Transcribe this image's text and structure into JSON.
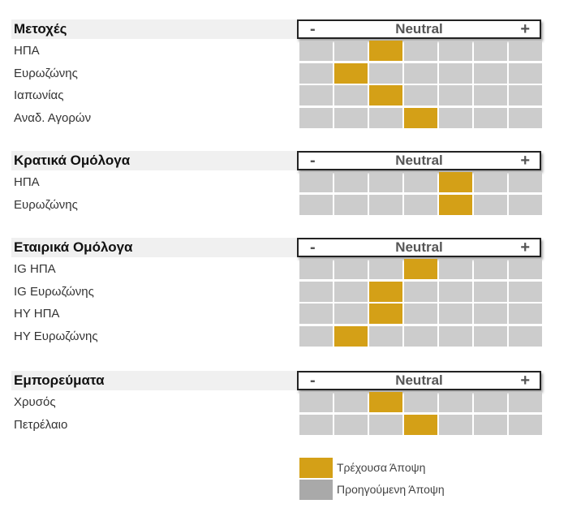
{
  "chart_data": {
    "type": "table",
    "scale": {
      "minus": "-",
      "neutral": "Neutral",
      "plus": "+"
    },
    "positions": 7,
    "colors": {
      "current": "#d4a017",
      "empty": "#cccccc",
      "previous": "#a9a9a9"
    },
    "sections": [
      {
        "title": "Μετοχές",
        "rows": [
          {
            "label": "ΗΠΑ",
            "current": 3
          },
          {
            "label": "Ευρωζώνης",
            "current": 2
          },
          {
            "label": "Ιαπωνίας",
            "current": 3
          },
          {
            "label": "Αναδ. Αγορών",
            "current": 4
          }
        ]
      },
      {
        "title": "Κρατικά Ομόλογα",
        "rows": [
          {
            "label": "ΗΠΑ",
            "current": 5
          },
          {
            "label": "Ευρωζώνης",
            "current": 5
          }
        ]
      },
      {
        "title": "Εταιρικά Ομόλογα",
        "rows": [
          {
            "label": "IG ΗΠΑ",
            "current": 4
          },
          {
            "label": "IG Ευρωζώνης",
            "current": 3
          },
          {
            "label": "HY ΗΠΑ",
            "current": 3
          },
          {
            "label": "HY Ευρωζώνης",
            "current": 2
          }
        ]
      },
      {
        "title": "Εμπορεύματα",
        "rows": [
          {
            "label": "Χρυσός",
            "current": 3
          },
          {
            "label": "Πετρέλαιο",
            "current": 4
          }
        ]
      }
    ],
    "legend": [
      {
        "label": "Τρέχουσα Άποψη",
        "color": "#d4a017"
      },
      {
        "label": "Προηγούμενη Άποψη",
        "color": "#a9a9a9"
      }
    ]
  }
}
